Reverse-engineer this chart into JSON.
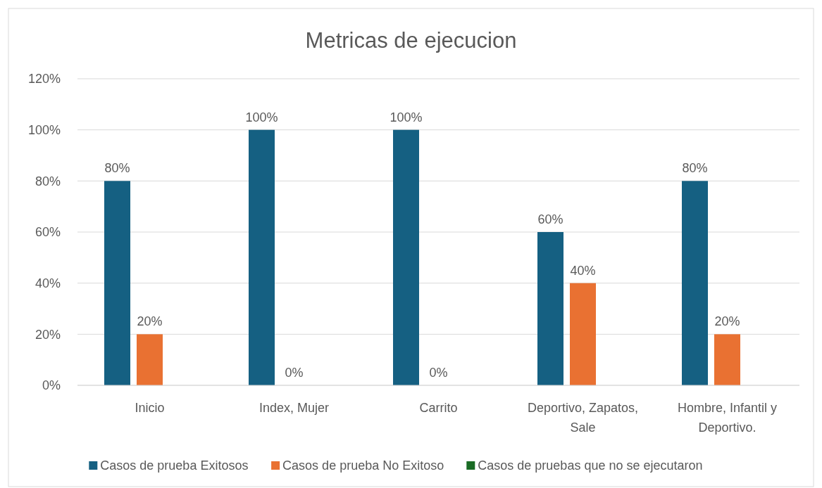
{
  "chart_data": {
    "type": "bar",
    "title": "Metricas de ejecucion",
    "categories": [
      "Inicio",
      "Index, Mujer",
      "Carrito",
      "Deportivo, Zapatos, Sale",
      "Hombre, Infantil y Deportivo."
    ],
    "series": [
      {
        "name": "Casos de prueba Exitosos",
        "color": "#156082",
        "values": [
          80,
          100,
          100,
          60,
          80
        ],
        "value_labels": [
          "80%",
          "100%",
          "100%",
          "60%",
          "80%"
        ]
      },
      {
        "name": "Casos de prueba No Exitoso",
        "color": "#e97132",
        "values": [
          20,
          0,
          0,
          40,
          20
        ],
        "value_labels": [
          "20%",
          "0%",
          "0%",
          "40%",
          "20%"
        ]
      },
      {
        "name": "Casos de pruebas que no se ejecutaron",
        "color": "#196b24",
        "values": [
          null,
          null,
          null,
          null,
          null
        ]
      }
    ],
    "ylim": [
      0,
      120
    ],
    "yticks": [
      {
        "value": 0,
        "label": "0%"
      },
      {
        "value": 20,
        "label": "20%"
      },
      {
        "value": 40,
        "label": "40%"
      },
      {
        "value": 60,
        "label": "60%"
      },
      {
        "value": 80,
        "label": "80%"
      },
      {
        "value": 100,
        "label": "100%"
      },
      {
        "value": 120,
        "label": "120%"
      }
    ],
    "grid": "y",
    "legend": "bottom"
  }
}
